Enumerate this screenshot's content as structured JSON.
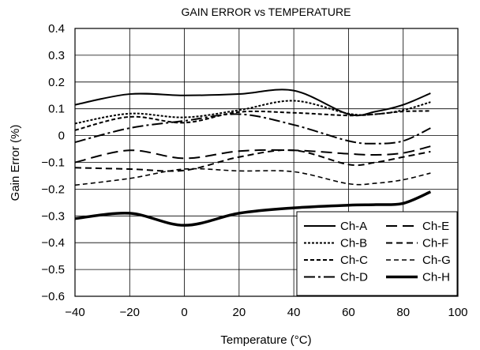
{
  "chart_data": {
    "type": "line",
    "title": "GAIN ERROR vs TEMPERATURE",
    "xlabel": "Temperature (°C)",
    "ylabel": "Gain Error (%)",
    "xlim": [
      -40,
      100
    ],
    "ylim": [
      -0.6,
      0.4
    ],
    "xticks": [
      -40,
      -20,
      0,
      20,
      40,
      60,
      80,
      100
    ],
    "xtick_labels": [
      "−40",
      "−20",
      "0",
      "20",
      "40",
      "60",
      "80",
      "100"
    ],
    "yticks": [
      0.4,
      0.3,
      0.2,
      0.1,
      0,
      -0.1,
      -0.2,
      -0.3,
      -0.4,
      -0.5,
      -0.6
    ],
    "ytick_labels": [
      "0.4",
      "0.3",
      "0.2",
      "0.1",
      "0",
      "−0.1",
      "−0.2",
      "−0.3",
      "−0.4",
      "−0.5",
      "−0.6"
    ],
    "grid": true,
    "legend_position": "bottom-right",
    "series": [
      {
        "name": "Ch-A",
        "style": "solid",
        "color": "#000000",
        "x": [
          -40,
          -20,
          0,
          20,
          40,
          60,
          70,
          80,
          90
        ],
        "y": [
          0.115,
          0.155,
          0.15,
          0.155,
          0.168,
          0.08,
          0.09,
          0.115,
          0.158
        ]
      },
      {
        "name": "Ch-B",
        "style": "dotted",
        "color": "#000000",
        "x": [
          -40,
          -20,
          0,
          20,
          40,
          60,
          70,
          80,
          90
        ],
        "y": [
          0.045,
          0.082,
          0.068,
          0.095,
          0.13,
          0.082,
          0.08,
          0.095,
          0.125
        ]
      },
      {
        "name": "Ch-C",
        "style": "short-dash",
        "color": "#000000",
        "x": [
          -40,
          -20,
          0,
          20,
          40,
          60,
          70,
          80,
          90
        ],
        "y": [
          0.02,
          0.07,
          0.048,
          0.088,
          0.085,
          0.075,
          0.08,
          0.09,
          0.092
        ]
      },
      {
        "name": "Ch-D",
        "style": "long-dash-dot",
        "color": "#000000",
        "x": [
          -40,
          -20,
          0,
          20,
          40,
          60,
          70,
          80,
          90
        ],
        "y": [
          -0.025,
          0.028,
          0.055,
          0.08,
          0.04,
          -0.02,
          -0.03,
          -0.02,
          0.028
        ]
      },
      {
        "name": "Ch-E",
        "style": "long-dash",
        "color": "#000000",
        "x": [
          -40,
          -20,
          0,
          20,
          40,
          60,
          70,
          80,
          90
        ],
        "y": [
          -0.1,
          -0.055,
          -0.085,
          -0.058,
          -0.055,
          -0.068,
          -0.072,
          -0.065,
          -0.04
        ]
      },
      {
        "name": "Ch-F",
        "style": "dash",
        "color": "#000000",
        "x": [
          -40,
          -20,
          0,
          20,
          40,
          60,
          70,
          80,
          90
        ],
        "y": [
          -0.12,
          -0.125,
          -0.13,
          -0.08,
          -0.055,
          -0.108,
          -0.1,
          -0.08,
          -0.06
        ]
      },
      {
        "name": "Ch-G",
        "style": "fine-dash",
        "color": "#000000",
        "x": [
          -40,
          -20,
          0,
          20,
          40,
          60,
          70,
          80,
          90
        ],
        "y": [
          -0.185,
          -0.16,
          -0.125,
          -0.132,
          -0.135,
          -0.18,
          -0.178,
          -0.165,
          -0.14
        ]
      },
      {
        "name": "Ch-H",
        "style": "thick-solid",
        "color": "#000000",
        "x": [
          -40,
          -20,
          0,
          20,
          40,
          60,
          70,
          80,
          90
        ],
        "y": [
          -0.31,
          -0.29,
          -0.335,
          -0.29,
          -0.27,
          -0.26,
          -0.258,
          -0.253,
          -0.21
        ]
      }
    ]
  }
}
